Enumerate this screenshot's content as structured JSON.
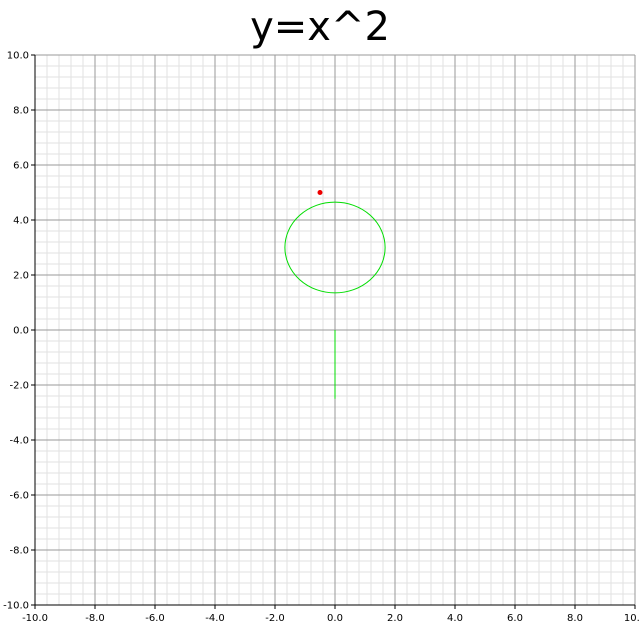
{
  "chart_data": {
    "type": "line",
    "title": "y=x^2",
    "xlabel": "",
    "ylabel": "",
    "xlim": [
      -10,
      10
    ],
    "ylim": [
      -10,
      10
    ],
    "grid": true,
    "grid_minor_step": 0.4,
    "grid_major_step": 2.0,
    "x_ticks": [
      "-10.0",
      "-8.0",
      "-6.0",
      "-4.0",
      "-2.0",
      "0.0",
      "2.0",
      "4.0",
      "6.0",
      "8.0",
      "10.0"
    ],
    "y_ticks": [
      "10.0",
      "8.0",
      "6.0",
      "4.0",
      "2.0",
      "0.0",
      "-2.0",
      "-4.0",
      "-6.0",
      "-8.0",
      "-10.0"
    ],
    "x_tick_values": [
      -10,
      -8,
      -6,
      -4,
      -2,
      0,
      2,
      4,
      6,
      8,
      10
    ],
    "y_tick_values": [
      10,
      8,
      6,
      4,
      2,
      0,
      -2,
      -4,
      -6,
      -8,
      -10
    ],
    "curve_color": "#00dd00",
    "point_color": "#ee0000",
    "series": [
      {
        "kind": "ellipse",
        "center": [
          0.0,
          3.0
        ],
        "radius_x": 1.67,
        "radius_y": 1.65
      },
      {
        "kind": "segment",
        "x": [
          0.0,
          0.0
        ],
        "y": [
          0.0,
          -2.5
        ]
      },
      {
        "kind": "point",
        "x": -0.5,
        "y": 5.0
      }
    ]
  }
}
